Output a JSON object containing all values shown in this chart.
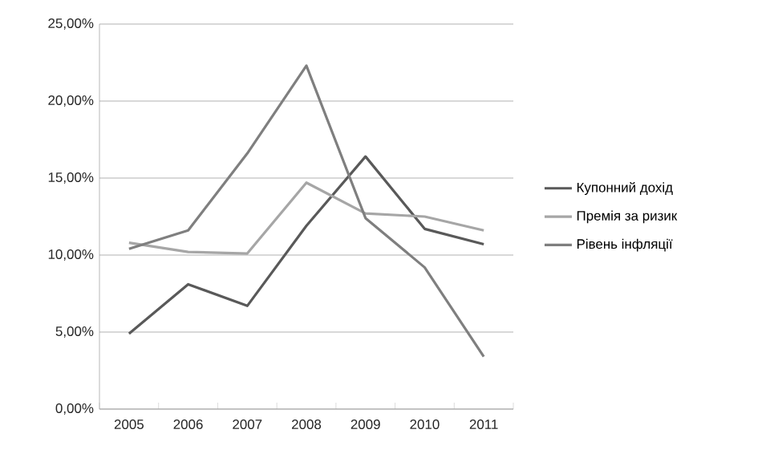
{
  "chart_data": {
    "type": "line",
    "categories": [
      "2005",
      "2006",
      "2007",
      "2008",
      "2009",
      "2010",
      "2011"
    ],
    "series": [
      {
        "name": "Купонний дохід",
        "color": "#595959",
        "values": [
          4.9,
          8.1,
          6.7,
          11.9,
          16.4,
          11.7,
          10.7
        ]
      },
      {
        "name": "Премія за ризик",
        "color": "#a6a6a6",
        "values": [
          10.8,
          10.2,
          10.1,
          14.7,
          12.7,
          12.5,
          11.6
        ]
      },
      {
        "name": "Рівень інфляції",
        "color": "#7f7f7f",
        "values": [
          10.4,
          11.6,
          16.6,
          22.3,
          12.4,
          9.2,
          3.4
        ]
      }
    ],
    "ylim": [
      0,
      25
    ],
    "yticks": [
      {
        "value": 0,
        "label": "0,00%"
      },
      {
        "value": 5,
        "label": "5,00%"
      },
      {
        "value": 10,
        "label": "10,00%"
      },
      {
        "value": 15,
        "label": "15,00%"
      },
      {
        "value": 20,
        "label": "20,00%"
      },
      {
        "value": 25,
        "label": "25,00%"
      }
    ],
    "grid": "y",
    "legend": "right",
    "marker": "none",
    "line_style": "solid"
  }
}
